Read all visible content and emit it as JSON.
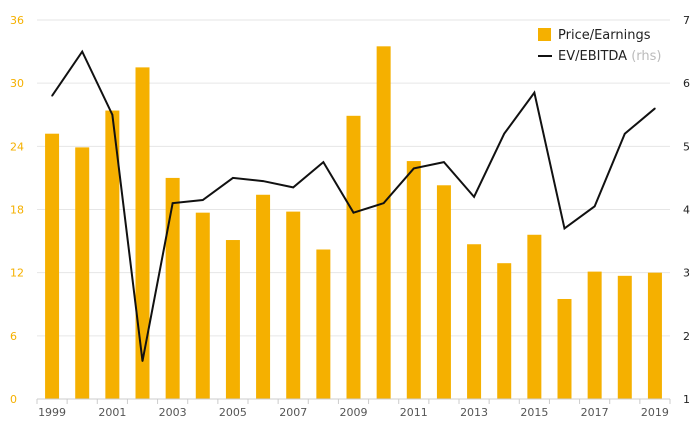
{
  "chart_data": {
    "type": "bar",
    "categories": [
      "1999",
      "2000",
      "2001",
      "2002",
      "2003",
      "2004",
      "2005",
      "2006",
      "2007",
      "2008",
      "2009",
      "2010",
      "2011",
      "2012",
      "2013",
      "2014",
      "2015",
      "2016",
      "2017",
      "2018",
      "2019"
    ],
    "x_tick_labels": [
      "1999",
      "2001",
      "2003",
      "2005",
      "2007",
      "2009",
      "2011",
      "2013",
      "2015",
      "2017",
      "2019"
    ],
    "series": [
      {
        "name": "Price/Earnings",
        "type": "bar",
        "axis": "left",
        "color": "#f5b000",
        "values": [
          25.2,
          23.9,
          27.4,
          31.5,
          21.0,
          17.7,
          15.1,
          19.4,
          17.8,
          14.2,
          26.9,
          33.5,
          22.6,
          20.3,
          14.7,
          12.9,
          15.6,
          9.5,
          12.1,
          11.7,
          12.0
        ]
      },
      {
        "name": "EV/EBITDA",
        "name_note": "(rhs)",
        "type": "line",
        "axis": "right",
        "color": "#111111",
        "values": [
          5.8,
          6.5,
          5.5,
          1.6,
          4.1,
          4.15,
          4.5,
          4.45,
          4.35,
          4.75,
          3.95,
          4.1,
          4.65,
          4.75,
          4.2,
          5.2,
          5.85,
          3.7,
          4.05,
          5.2,
          5.6
        ]
      }
    ],
    "y_left": {
      "min": 0,
      "max": 36,
      "ticks": [
        0,
        6,
        12,
        18,
        24,
        30,
        36
      ]
    },
    "y_right": {
      "min": 1,
      "max": 7,
      "ticks": [
        1,
        2,
        3,
        4,
        5,
        6,
        7
      ]
    },
    "grid": true,
    "legend": "top-right"
  },
  "legend": {
    "bar_label": "Price/Earnings",
    "line_label": "EV/EBITDA",
    "line_note": "(rhs)"
  }
}
